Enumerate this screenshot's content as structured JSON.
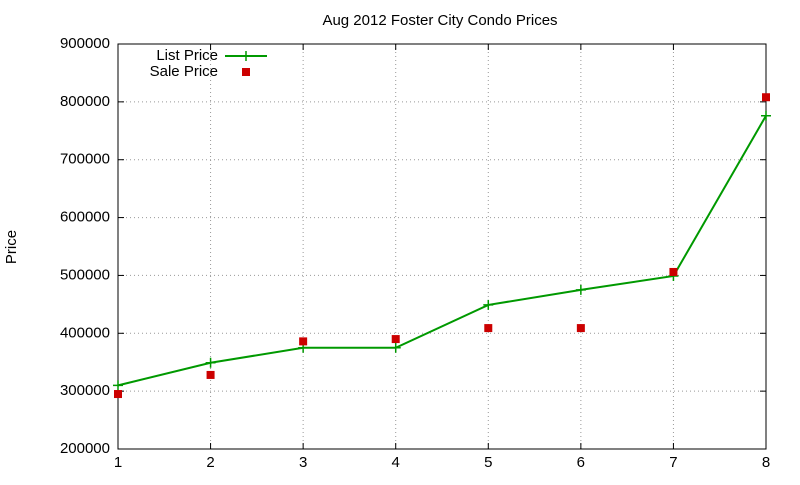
{
  "chart_data": {
    "type": "line",
    "title": "Aug 2012 Foster City Condo Prices",
    "y_label": "Price",
    "x": [
      1,
      2,
      3,
      4,
      5,
      6,
      7,
      8
    ],
    "series": [
      {
        "name": "List Price",
        "color": "#009900",
        "style": "linespoints",
        "values": [
          310000,
          349000,
          375000,
          375000,
          449000,
          475000,
          499000,
          776000
        ]
      },
      {
        "name": "Sale Price",
        "color": "#cc0000",
        "style": "points",
        "values": [
          295000,
          328000,
          386000,
          390000,
          409000,
          409000,
          506000,
          808000
        ]
      }
    ],
    "xlim": [
      1,
      8
    ],
    "xticks": [
      1,
      2,
      3,
      4,
      5,
      6,
      7,
      8
    ],
    "ylim": [
      200000,
      900000
    ],
    "yticks": [
      200000,
      300000,
      400000,
      500000,
      600000,
      700000,
      800000,
      900000
    ],
    "grid": true,
    "legend": "top-left"
  }
}
